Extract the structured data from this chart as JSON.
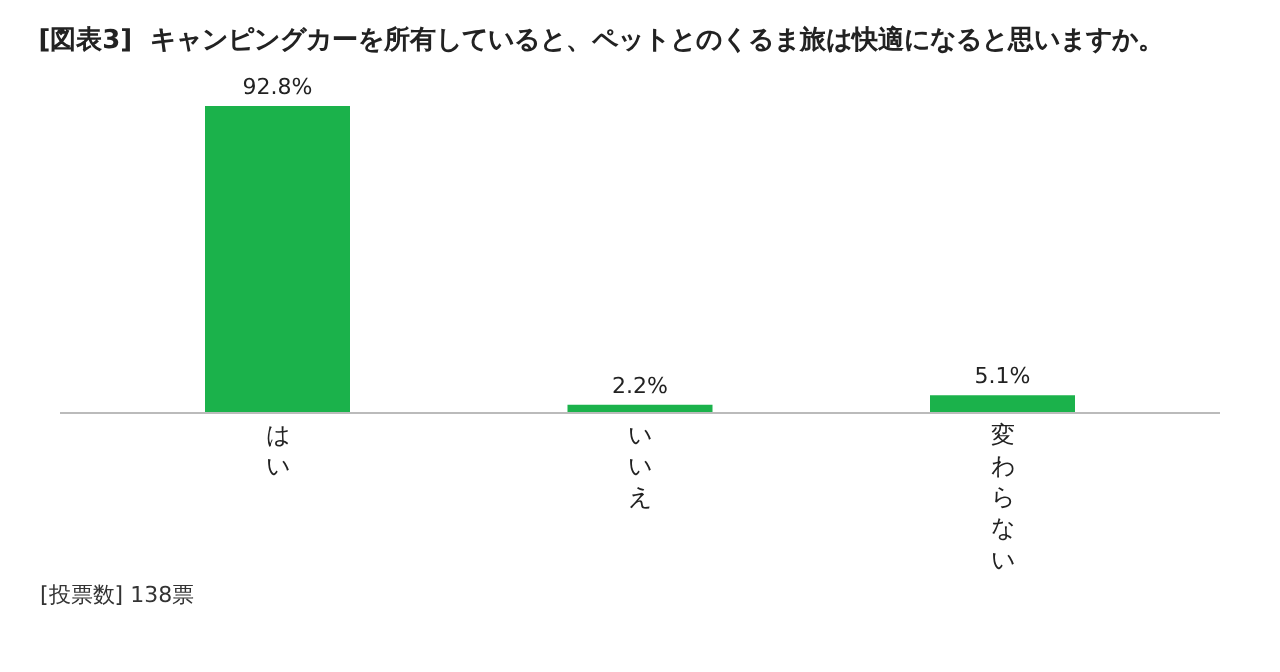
{
  "chart_data": {
    "type": "bar",
    "title": "[図表3]  キャンピングカーを所有していると、ペットとのくるま旅は快適になると思いますか。",
    "categories": [
      "はい",
      "いいえ",
      "変わらない"
    ],
    "values": [
      92.8,
      2.2,
      5.1
    ],
    "color": "#1bb24b",
    "data_labels": true,
    "value_labels": [
      "92.8%",
      "2.2%",
      "5.1%"
    ],
    "annotations": [
      "[投票数] 138票"
    ]
  }
}
